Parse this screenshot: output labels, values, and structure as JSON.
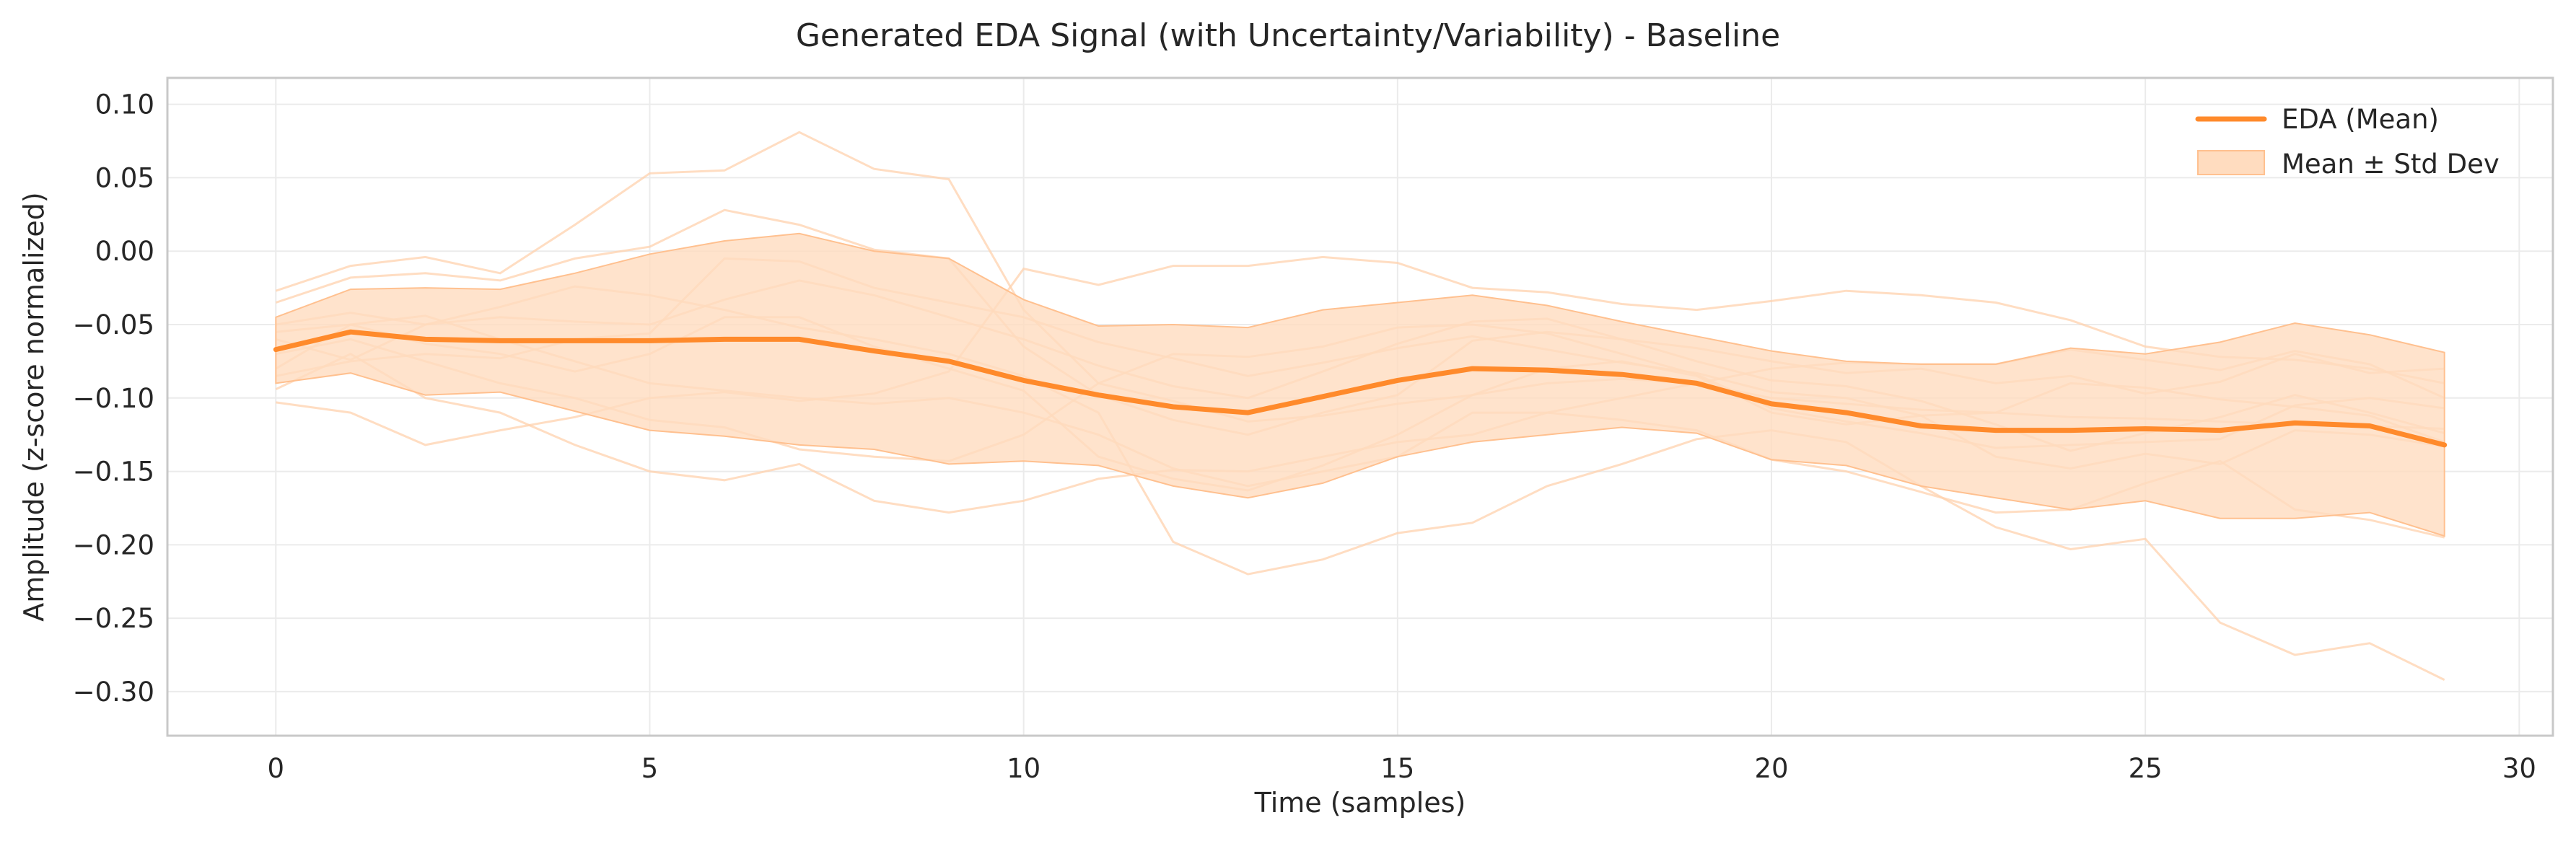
{
  "chart_data": {
    "type": "line",
    "title": "Generated EDA Signal (with Uncertainty/Variability) - Baseline",
    "xlabel": "Time (samples)",
    "ylabel": "Amplitude (z-score normalized)",
    "xlim": [
      -1.45,
      30.45
    ],
    "ylim": [
      -0.33,
      0.118
    ],
    "x_ticks": [
      0,
      5,
      10,
      15,
      20,
      25,
      30
    ],
    "y_ticks": [
      0.1,
      0.05,
      0.0,
      -0.05,
      -0.1,
      -0.15,
      -0.2,
      -0.25,
      -0.3
    ],
    "x_tick_labels": [
      "0",
      "5",
      "10",
      "15",
      "20",
      "25",
      "30"
    ],
    "y_tick_labels": [
      "0.10",
      "0.05",
      "0.00",
      "−0.05",
      "−0.10",
      "−0.15",
      "−0.20",
      "−0.25",
      "−0.30"
    ],
    "grid": true,
    "legend_position": "top-right",
    "colors": {
      "mean_line": "#ff8a2b",
      "band_fill": "#ffdcbf",
      "band_edge": "#ffc08f",
      "samples": "#ffd2ad"
    },
    "x": [
      0,
      1,
      2,
      3,
      4,
      5,
      6,
      7,
      8,
      9,
      10,
      11,
      12,
      13,
      14,
      15,
      16,
      17,
      18,
      19,
      20,
      21,
      22,
      23,
      24,
      25,
      26,
      27,
      28,
      29
    ],
    "series": [
      {
        "name": "EDA (Mean)",
        "role": "mean",
        "values": [
          -0.067,
          -0.055,
          -0.06,
          -0.061,
          -0.061,
          -0.061,
          -0.06,
          -0.06,
          -0.068,
          -0.075,
          -0.088,
          -0.098,
          -0.106,
          -0.11,
          -0.099,
          -0.088,
          -0.08,
          -0.081,
          -0.084,
          -0.09,
          -0.104,
          -0.11,
          -0.119,
          -0.122,
          -0.122,
          -0.121,
          -0.122,
          -0.117,
          -0.119,
          -0.132
        ]
      },
      {
        "name": "Mean ± Std Dev",
        "role": "band",
        "upper": [
          -0.045,
          -0.026,
          -0.025,
          -0.026,
          -0.015,
          -0.002,
          0.007,
          0.012,
          0.0,
          -0.005,
          -0.033,
          -0.051,
          -0.05,
          -0.052,
          -0.04,
          -0.035,
          -0.03,
          -0.037,
          -0.048,
          -0.058,
          -0.068,
          -0.075,
          -0.077,
          -0.077,
          -0.066,
          -0.07,
          -0.062,
          -0.049,
          -0.057,
          -0.069
        ],
        "lower": [
          -0.09,
          -0.083,
          -0.098,
          -0.096,
          -0.109,
          -0.122,
          -0.126,
          -0.132,
          -0.135,
          -0.145,
          -0.143,
          -0.146,
          -0.16,
          -0.168,
          -0.158,
          -0.14,
          -0.13,
          -0.125,
          -0.12,
          -0.124,
          -0.142,
          -0.146,
          -0.16,
          -0.168,
          -0.176,
          -0.17,
          -0.182,
          -0.182,
          -0.178,
          -0.194
        ]
      }
    ],
    "samples": [
      [
        -0.027,
        -0.01,
        -0.004,
        -0.015,
        0.018,
        0.053,
        0.055,
        0.081,
        0.056,
        0.049,
        -0.04,
        -0.09,
        -0.102,
        -0.116,
        -0.112,
        -0.104,
        -0.098,
        -0.09,
        -0.087,
        -0.09,
        -0.1,
        -0.104,
        -0.108,
        -0.11,
        -0.113,
        -0.114,
        -0.116,
        -0.118,
        -0.119,
        -0.121
      ],
      [
        -0.035,
        -0.018,
        -0.015,
        -0.02,
        -0.005,
        0.003,
        0.028,
        0.018,
        0.001,
        -0.005,
        -0.065,
        -0.098,
        -0.115,
        -0.125,
        -0.11,
        -0.098,
        -0.061,
        -0.055,
        -0.06,
        -0.066,
        -0.075,
        -0.083,
        -0.08,
        -0.09,
        -0.085,
        -0.097,
        -0.089,
        -0.07,
        -0.083,
        -0.08
      ],
      [
        -0.103,
        -0.11,
        -0.132,
        -0.122,
        -0.113,
        -0.1,
        -0.096,
        -0.102,
        -0.097,
        -0.082,
        -0.012,
        -0.023,
        -0.01,
        -0.01,
        -0.004,
        -0.008,
        -0.025,
        -0.028,
        -0.036,
        -0.04,
        -0.034,
        -0.027,
        -0.03,
        -0.035,
        -0.047,
        -0.065,
        -0.072,
        -0.074,
        -0.08,
        -0.09
      ],
      [
        -0.094,
        -0.07,
        -0.1,
        -0.11,
        -0.132,
        -0.15,
        -0.156,
        -0.145,
        -0.17,
        -0.178,
        -0.17,
        -0.155,
        -0.149,
        -0.15,
        -0.14,
        -0.13,
        -0.125,
        -0.11,
        -0.1,
        -0.09,
        -0.08,
        -0.076,
        -0.077,
        -0.077,
        -0.067,
        -0.074,
        -0.081,
        -0.068,
        -0.077,
        -0.1
      ],
      [
        -0.08,
        -0.05,
        -0.044,
        -0.06,
        -0.075,
        -0.09,
        -0.095,
        -0.1,
        -0.104,
        -0.1,
        -0.11,
        -0.125,
        -0.148,
        -0.16,
        -0.15,
        -0.14,
        -0.11,
        -0.11,
        -0.115,
        -0.122,
        -0.142,
        -0.15,
        -0.164,
        -0.178,
        -0.176,
        -0.158,
        -0.143,
        -0.176,
        -0.183,
        -0.195
      ],
      [
        -0.06,
        -0.074,
        -0.05,
        -0.038,
        -0.024,
        -0.03,
        -0.04,
        -0.052,
        -0.06,
        -0.07,
        -0.085,
        -0.11,
        -0.198,
        -0.22,
        -0.21,
        -0.192,
        -0.185,
        -0.16,
        -0.145,
        -0.128,
        -0.122,
        -0.13,
        -0.16,
        -0.188,
        -0.203,
        -0.196,
        -0.253,
        -0.275,
        -0.267,
        -0.292
      ],
      [
        -0.055,
        -0.05,
        -0.063,
        -0.07,
        -0.082,
        -0.07,
        -0.045,
        -0.045,
        -0.065,
        -0.08,
        -0.095,
        -0.14,
        -0.155,
        -0.163,
        -0.146,
        -0.125,
        -0.098,
        -0.08,
        -0.075,
        -0.085,
        -0.11,
        -0.118,
        -0.112,
        -0.11,
        -0.09,
        -0.093,
        -0.101,
        -0.106,
        -0.112,
        -0.13
      ],
      [
        -0.07,
        -0.06,
        -0.075,
        -0.09,
        -0.1,
        -0.115,
        -0.12,
        -0.135,
        -0.14,
        -0.143,
        -0.125,
        -0.09,
        -0.07,
        -0.072,
        -0.065,
        -0.052,
        -0.05,
        -0.056,
        -0.07,
        -0.084,
        -0.107,
        -0.116,
        -0.124,
        -0.134,
        -0.132,
        -0.13,
        -0.128,
        -0.105,
        -0.1,
        -0.107
      ],
      [
        -0.05,
        -0.042,
        -0.05,
        -0.045,
        -0.048,
        -0.05,
        -0.033,
        -0.02,
        -0.03,
        -0.045,
        -0.06,
        -0.078,
        -0.092,
        -0.1,
        -0.082,
        -0.063,
        -0.048,
        -0.046,
        -0.06,
        -0.075,
        -0.088,
        -0.092,
        -0.102,
        -0.118,
        -0.136,
        -0.124,
        -0.113,
        -0.098,
        -0.11,
        -0.124
      ],
      [
        -0.085,
        -0.075,
        -0.07,
        -0.073,
        -0.06,
        -0.056,
        -0.005,
        -0.007,
        -0.025,
        -0.035,
        -0.045,
        -0.062,
        -0.073,
        -0.085,
        -0.076,
        -0.066,
        -0.058,
        -0.067,
        -0.076,
        -0.083,
        -0.096,
        -0.1,
        -0.112,
        -0.14,
        -0.148,
        -0.138,
        -0.145,
        -0.122,
        -0.125,
        -0.133
      ]
    ]
  }
}
